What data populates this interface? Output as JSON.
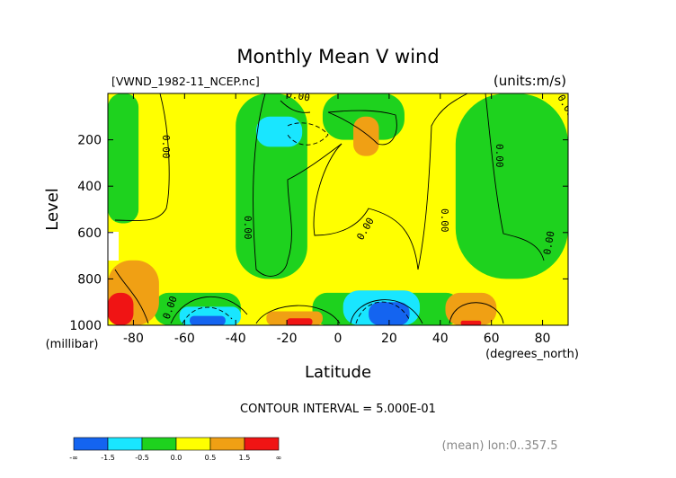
{
  "chart_data": {
    "type": "heatmap",
    "title": "Monthly Mean V wind",
    "file_label": "[VWND_1982-11_NCEP.nc]",
    "units_label": "(units:m/s)",
    "xlabel": "Latitude",
    "xunit": "(degrees_north)",
    "ylabel": "Level",
    "yunit": "(millibar)",
    "xlim": [
      -90,
      90
    ],
    "ylim": [
      1000,
      0
    ],
    "x_ticks": [
      -80,
      -60,
      -40,
      -20,
      0,
      20,
      40,
      60,
      80
    ],
    "y_ticks": [
      200,
      400,
      600,
      800,
      1000
    ],
    "contour_interval_text": "CONTOUR INTERVAL = 5.000E-01",
    "footer_text": "(mean) lon:0..357.5",
    "contour_labels": [
      "0.00",
      "0.00",
      "0.00",
      "0.00",
      "0.00",
      "0.00",
      "0.00",
      "0.00",
      "0.00"
    ],
    "colorbar": {
      "tick_labels": [
        "-∞",
        "-1.5",
        "-0.5",
        "0.0",
        "0.5",
        "1.5",
        "∞"
      ],
      "colors": [
        "#1464f0",
        "#19e6ff",
        "#1ed21e",
        "#ffff00",
        "#f0a014",
        "#f01414"
      ]
    },
    "background_color": "#ffff00",
    "regions": [
      {
        "level": "positive",
        "color": "#ffff00",
        "lat_range": [
          -90,
          90
        ],
        "pressure_range": [
          0,
          1000
        ]
      },
      {
        "level": "negative",
        "color": "#1ed21e",
        "lat_range": [
          -90,
          -78
        ],
        "pressure_range": [
          0,
          560
        ]
      },
      {
        "level": "negative",
        "color": "#1ed21e",
        "lat_range": [
          -40,
          -12
        ],
        "pressure_range": [
          0,
          800
        ]
      },
      {
        "level": "negative",
        "color": "#1ed21e",
        "lat_range": [
          -6,
          26
        ],
        "pressure_range": [
          0,
          200
        ]
      },
      {
        "level": "negative",
        "color": "#1ed21e",
        "lat_range": [
          46,
          90
        ],
        "pressure_range": [
          0,
          800
        ]
      },
      {
        "level": "negative",
        "color": "#1ed21e",
        "lat_range": [
          -10,
          48
        ],
        "pressure_range": [
          860,
          1000
        ]
      },
      {
        "level": "negative",
        "color": "#1ed21e",
        "lat_range": [
          -72,
          -38
        ],
        "pressure_range": [
          860,
          1000
        ]
      },
      {
        "level": "weak_negative",
        "color": "#19e6ff",
        "lat_range": [
          -62,
          -38
        ],
        "pressure_range": [
          920,
          1000
        ]
      },
      {
        "level": "weak_negative",
        "color": "#19e6ff",
        "lat_range": [
          2,
          32
        ],
        "pressure_range": [
          850,
          1000
        ]
      },
      {
        "level": "weak_negative",
        "color": "#19e6ff",
        "lat_range": [
          -32,
          -14
        ],
        "pressure_range": [
          100,
          230
        ]
      },
      {
        "level": "strong_negative",
        "color": "#1464f0",
        "lat_range": [
          -58,
          -44
        ],
        "pressure_range": [
          960,
          1000
        ]
      },
      {
        "level": "strong_negative",
        "color": "#1464f0",
        "lat_range": [
          12,
          28
        ],
        "pressure_range": [
          900,
          1000
        ]
      },
      {
        "level": "weak_positive",
        "color": "#f0a014",
        "lat_range": [
          6,
          16
        ],
        "pressure_range": [
          100,
          270
        ]
      },
      {
        "level": "weak_positive",
        "color": "#f0a014",
        "lat_range": [
          -28,
          -6
        ],
        "pressure_range": [
          940,
          1000
        ]
      },
      {
        "level": "weak_positive",
        "color": "#f0a014",
        "lat_range": [
          42,
          62
        ],
        "pressure_range": [
          860,
          1000
        ]
      },
      {
        "level": "weak_positive",
        "color": "#f0a014",
        "lat_range": [
          -90,
          -70
        ],
        "pressure_range": [
          720,
          1000
        ]
      },
      {
        "level": "strong_positive",
        "color": "#f01414",
        "lat_range": [
          -90,
          -80
        ],
        "pressure_range": [
          860,
          1000
        ]
      },
      {
        "level": "strong_positive",
        "color": "#f01414",
        "lat_range": [
          -20,
          -10
        ],
        "pressure_range": [
          970,
          1000
        ]
      },
      {
        "level": "strong_positive",
        "color": "#f01414",
        "lat_range": [
          48,
          56
        ],
        "pressure_range": [
          980,
          1000
        ]
      }
    ]
  }
}
